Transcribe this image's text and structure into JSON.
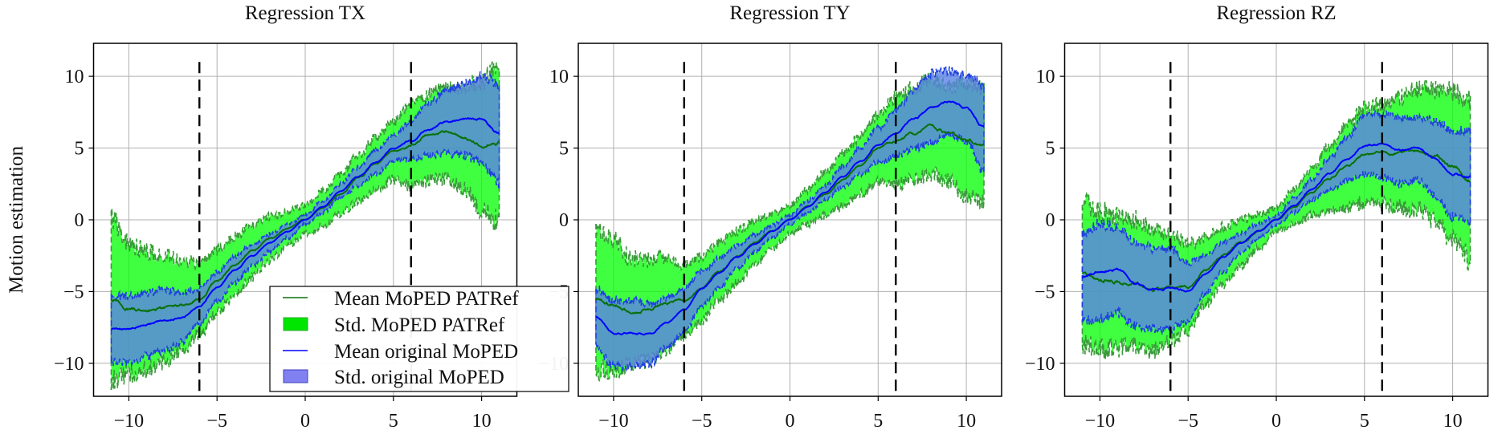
{
  "chart_data": [
    {
      "type": "line",
      "title": "Regression TX",
      "xlabel": "",
      "ylabel": "Motion estimation",
      "xlim": [
        -12,
        12
      ],
      "ylim": [
        -12.3,
        12.3
      ],
      "grid": true,
      "xticks": [
        -10,
        -5,
        0,
        5,
        10
      ],
      "xtick_labels": [
        "−10",
        "−5",
        "0",
        "5",
        "10"
      ],
      "yticks": [
        -10,
        -5,
        0,
        5,
        10
      ],
      "ytick_labels": [
        "−10",
        "−5",
        "0",
        "5",
        "10"
      ],
      "vlines": [
        -6,
        6
      ],
      "x": [
        -11,
        -10,
        -9,
        -8,
        -7,
        -6,
        -5,
        -4,
        -3,
        -2,
        -1,
        0,
        1,
        2,
        3,
        4,
        5,
        6,
        7,
        8,
        9,
        10,
        11
      ],
      "series": [
        {
          "name": "MoPED PATRef",
          "mean": [
            -5.6,
            -6.2,
            -6.3,
            -6.2,
            -6.0,
            -5.5,
            -4.3,
            -3.2,
            -2.2,
            -1.3,
            -0.6,
            0,
            0.8,
            1.8,
            2.9,
            3.9,
            4.8,
            5.2,
            5.8,
            6.1,
            5.7,
            5.2,
            5.4
          ],
          "std": [
            5.7,
            4.5,
            4.1,
            3.7,
            3.1,
            2.5,
            2.2,
            2.0,
            1.8,
            1.5,
            1.2,
            1.0,
            1.2,
            1.4,
            1.6,
            1.8,
            2.0,
            2.8,
            3.0,
            3.2,
            3.6,
            4.5,
            5.5
          ]
        },
        {
          "name": "original MoPED",
          "mean": [
            -7.6,
            -7.6,
            -7.3,
            -7.0,
            -6.8,
            -6.0,
            -4.7,
            -3.5,
            -2.5,
            -1.6,
            -0.8,
            0,
            0.9,
            2.0,
            3.0,
            4.0,
            5.0,
            5.5,
            6.3,
            6.8,
            7.0,
            7.0,
            6.0
          ],
          "std": [
            2.3,
            2.3,
            2.2,
            2.1,
            1.7,
            1.2,
            1.0,
            0.9,
            0.75,
            0.6,
            0.45,
            0.3,
            0.4,
            0.5,
            0.65,
            0.8,
            0.9,
            1.3,
            1.8,
            2.2,
            2.5,
            3.0,
            3.5
          ]
        }
      ],
      "legend": {
        "placement": "lower-right",
        "entries": [
          "Mean MoPED PATRef",
          "Std. MoPED PATRef",
          "Mean original MoPED",
          "Std. original MoPED"
        ]
      }
    },
    {
      "type": "line",
      "title": "Regression TY",
      "xlim": [
        -12,
        12
      ],
      "ylim": [
        -12.3,
        12.3
      ],
      "grid": true,
      "xticks": [
        -10,
        -5,
        0,
        5,
        10
      ],
      "xtick_labels": [
        "−10",
        "−5",
        "0",
        "5",
        "10"
      ],
      "yticks": [
        -10,
        -5,
        0,
        5,
        10
      ],
      "ytick_labels": [
        "−10",
        "−5",
        "0",
        "5",
        "10"
      ],
      "vlines": [
        -6,
        6
      ],
      "x": [
        -11,
        -10,
        -9,
        -8,
        -7,
        -6,
        -5,
        -4,
        -3,
        -2,
        -1,
        0,
        1,
        2,
        3,
        4,
        5,
        6,
        7,
        8,
        9,
        10,
        11
      ],
      "series": [
        {
          "name": "MoPED PATRef",
          "mean": [
            -5.5,
            -5.9,
            -6.4,
            -6.3,
            -5.8,
            -5.6,
            -4.8,
            -3.6,
            -2.6,
            -1.6,
            -0.8,
            0,
            0.9,
            1.8,
            2.8,
            3.8,
            5.0,
            5.5,
            6.0,
            6.5,
            6.0,
            5.6,
            5.2
          ],
          "std": [
            5.0,
            4.5,
            3.7,
            3.5,
            3.2,
            2.5,
            2.2,
            2.0,
            1.8,
            1.5,
            1.2,
            1.0,
            1.2,
            1.5,
            1.8,
            2.0,
            2.3,
            3.0,
            3.2,
            3.3,
            3.3,
            4.0,
            4.0
          ]
        },
        {
          "name": "original MoPED",
          "mean": [
            -6.8,
            -7.9,
            -7.9,
            -8.0,
            -7.2,
            -6.3,
            -4.8,
            -3.7,
            -2.6,
            -1.7,
            -0.8,
            0,
            0.9,
            1.9,
            3.0,
            4.1,
            5.2,
            6.0,
            7.0,
            7.8,
            8.2,
            7.8,
            6.4
          ],
          "std": [
            2.0,
            2.3,
            2.3,
            2.1,
            1.7,
            1.5,
            1.2,
            1.0,
            0.8,
            0.6,
            0.45,
            0.3,
            0.4,
            0.5,
            0.7,
            0.9,
            1.2,
            1.6,
            2.0,
            2.4,
            2.2,
            2.3,
            3.0
          ]
        }
      ]
    },
    {
      "type": "line",
      "title": "Regression RZ",
      "xlim": [
        -12,
        12
      ],
      "ylim": [
        -12.3,
        12.3
      ],
      "grid": true,
      "xticks": [
        -10,
        -5,
        0,
        5,
        10
      ],
      "xtick_labels": [
        "−10",
        "−5",
        "0",
        "5",
        "10"
      ],
      "yticks": [
        -10,
        -5,
        0,
        5,
        10
      ],
      "ytick_labels": [
        "−10",
        "−5",
        "0",
        "5",
        "10"
      ],
      "vlines": [
        -6,
        6
      ],
      "x": [
        -11,
        -10,
        -9,
        -8,
        -7,
        -6,
        -5,
        -4,
        -3,
        -2,
        -1,
        0,
        1,
        2,
        3,
        4,
        5,
        6,
        7,
        8,
        9,
        10,
        11
      ],
      "series": [
        {
          "name": "MoPED PATRef",
          "mean": [
            -3.7,
            -4.2,
            -4.3,
            -4.4,
            -4.9,
            -4.7,
            -4.7,
            -3.5,
            -2.5,
            -1.6,
            -0.8,
            0,
            0.9,
            1.9,
            2.9,
            3.7,
            4.5,
            4.6,
            4.7,
            4.9,
            4.5,
            3.8,
            2.8
          ],
          "std": [
            5.0,
            4.8,
            4.6,
            4.4,
            4.2,
            3.7,
            3.0,
            2.3,
            2.0,
            1.6,
            1.2,
            0.8,
            1.2,
            1.6,
            2.2,
            2.8,
            3.3,
            3.5,
            3.8,
            4.2,
            4.5,
            5.2,
            5.5
          ]
        },
        {
          "name": "original MoPED",
          "mean": [
            -4.0,
            -3.6,
            -3.5,
            -4.5,
            -4.8,
            -4.8,
            -5.0,
            -3.8,
            -2.6,
            -1.6,
            -0.8,
            0,
            1.0,
            2.1,
            3.2,
            4.2,
            5.2,
            5.2,
            4.8,
            5.0,
            4.3,
            3.2,
            3.0
          ],
          "std": [
            3.0,
            3.3,
            3.0,
            2.9,
            2.8,
            2.8,
            2.0,
            1.3,
            1.0,
            0.7,
            0.5,
            0.3,
            0.5,
            0.7,
            1.1,
            1.5,
            2.0,
            2.2,
            2.3,
            2.2,
            2.6,
            3.0,
            3.2
          ]
        }
      ]
    }
  ],
  "colors": {
    "patref_mean": "#0a700a",
    "patref_band": "rgba(0,255,0,0.75)",
    "patref_edge": "#3a9a3a",
    "orig_mean": "#0000ff",
    "orig_band": "rgba(90,130,230,0.8)",
    "orig_edge": "#2040e0",
    "grid": "#b0b0b0"
  }
}
